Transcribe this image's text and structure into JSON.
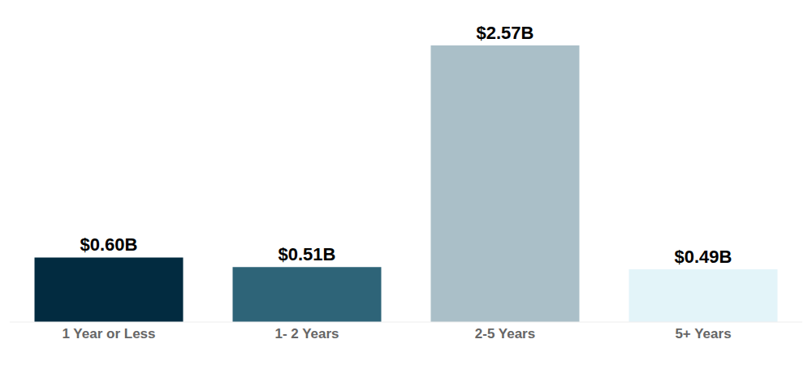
{
  "chart_data": {
    "type": "bar",
    "categories": [
      "1 Year or Less",
      "1- 2 Years",
      "2-5 Years",
      "5+ Years"
    ],
    "values": [
      0.6,
      0.51,
      2.57,
      0.49
    ],
    "value_labels": [
      "$0.60B",
      "$0.51B",
      "$2.57B",
      "$0.49B"
    ],
    "colors": [
      "#022b40",
      "#2e6478",
      "#aabfc8",
      "#e3f4f9"
    ],
    "ylim": [
      0,
      2.57
    ],
    "data_labels": true,
    "tick_labels": "x",
    "grid": false
  }
}
